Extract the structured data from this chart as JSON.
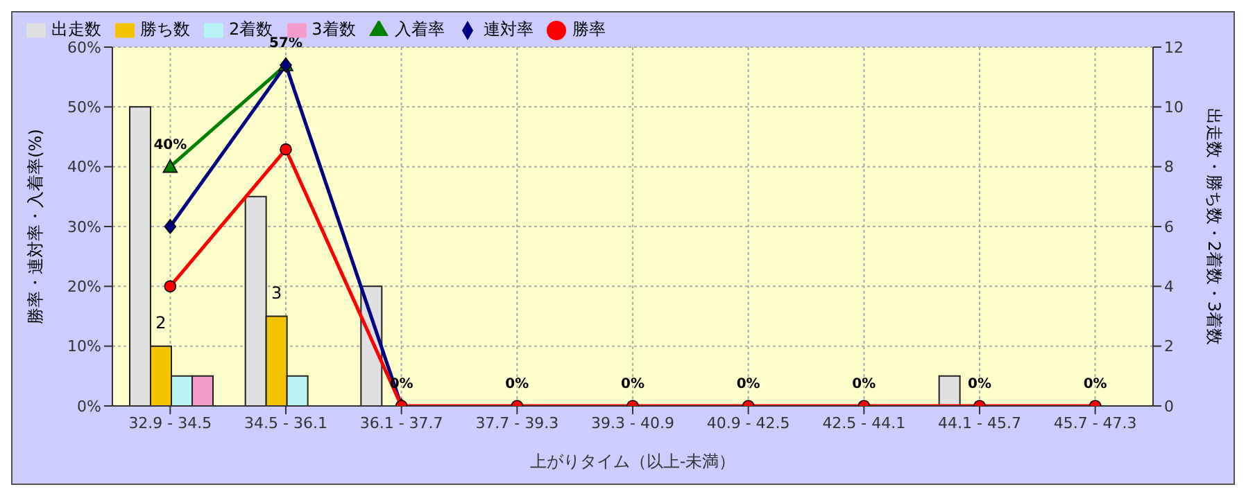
{
  "chart_data": {
    "type": "bar",
    "xlabel": "上がりタイム（以上-未満）",
    "ylabel": "勝率・連対率・入着率(%)",
    "y2label": "出走数・勝ち数・2着数・3着数",
    "categories": [
      "32.9 - 34.5",
      "34.5 - 36.1",
      "36.1 - 37.7",
      "37.7 - 39.3",
      "39.3 - 40.9",
      "40.9 - 42.5",
      "42.5 - 44.1",
      "44.1 - 45.7",
      "45.7 - 47.3"
    ],
    "series": [
      {
        "name": "出走数",
        "axis": "y2",
        "color": "#e0e0e0",
        "values": [
          10,
          7,
          4,
          0,
          0,
          0,
          0,
          1,
          0
        ]
      },
      {
        "name": "勝ち数",
        "axis": "y2",
        "color": "#f5c400",
        "values": [
          2,
          3,
          0,
          0,
          0,
          0,
          0,
          0,
          0
        ],
        "value_labels": [
          "2",
          "3",
          null,
          null,
          null,
          null,
          null,
          null,
          null
        ]
      },
      {
        "name": "2着数",
        "axis": "y2",
        "color": "#b8f4f4",
        "values": [
          1,
          1,
          0,
          0,
          0,
          0,
          0,
          0,
          0
        ]
      },
      {
        "name": "3着数",
        "axis": "y2",
        "color": "#f49ccc",
        "values": [
          1,
          0,
          0,
          0,
          0,
          0,
          0,
          0,
          0
        ]
      },
      {
        "name": "入着率",
        "type": "line",
        "color": "#008000",
        "marker": "triangle",
        "values": [
          40,
          57,
          null,
          null,
          null,
          null,
          null,
          null,
          null
        ],
        "value_labels": [
          "40%",
          "57%",
          null,
          null,
          null,
          null,
          null,
          null,
          null
        ]
      },
      {
        "name": "連対率",
        "type": "line",
        "color": "#000080",
        "marker": "diamond",
        "values": [
          30,
          57,
          0,
          null,
          null,
          null,
          null,
          null,
          null
        ]
      },
      {
        "name": "勝率",
        "type": "line",
        "color": "#ff0000",
        "marker": "circle",
        "values": [
          20,
          42.9,
          0,
          0,
          0,
          0,
          0,
          0,
          0
        ],
        "value_labels": [
          null,
          null,
          "0%",
          "0%",
          "0%",
          "0%",
          "0%",
          "0%",
          "0%"
        ]
      }
    ],
    "ylim": [
      0,
      60
    ],
    "yticks": [
      {
        "value": 0,
        "label": "0%"
      },
      {
        "value": 10,
        "label": "10%"
      },
      {
        "value": 20,
        "label": "20%"
      },
      {
        "value": 30,
        "label": "30%"
      },
      {
        "value": 40,
        "label": "40%"
      },
      {
        "value": 50,
        "label": "50%"
      },
      {
        "value": 60,
        "label": "60%"
      }
    ],
    "y2lim": [
      0,
      12
    ],
    "y2ticks": [
      0,
      2,
      4,
      6,
      8,
      10,
      12
    ],
    "grid": true,
    "legend": "top left"
  }
}
